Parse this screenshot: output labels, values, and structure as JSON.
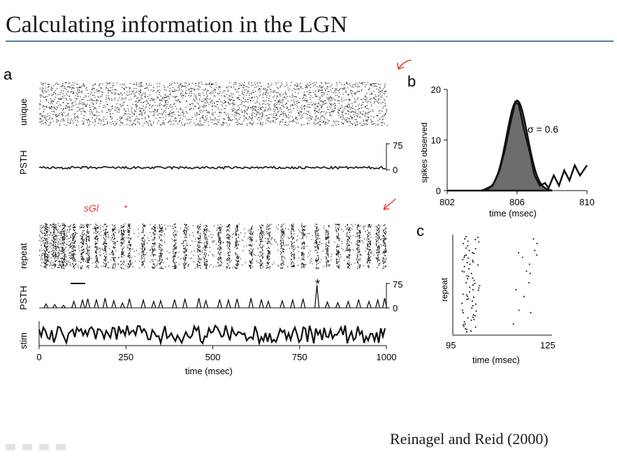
{
  "slide": {
    "title": "Calculating information in the LGN",
    "citation": "Reinagel and Reid (2000)"
  },
  "colors": {
    "title_rule": "#5a7fa6",
    "annotation": "#e8352b",
    "trace": "#111111"
  },
  "panel_a": {
    "label": "a",
    "unique_label": "unique",
    "psth_label_top": "PSTH",
    "psth_top_ticks": [
      "75",
      "0"
    ],
    "repeat_label": "repeat",
    "psth_label_bottom": "PSTH",
    "psth_bottom_ticks": [
      "75",
      "0"
    ],
    "stim_label": "stim",
    "x_ticks": [
      "0",
      "250",
      "500",
      "750",
      "1000"
    ],
    "xlabel": "time (msec)",
    "asterisk": "*"
  },
  "panel_b": {
    "label": "b",
    "ylabel": "spikes observed",
    "y_ticks": [
      "20",
      "10",
      "0"
    ],
    "x_ticks": [
      "802",
      "806",
      "810"
    ],
    "xlabel": "time (msec)",
    "annotation": "σ = 0.6"
  },
  "panel_c": {
    "label": "c",
    "ylabel": "repeat",
    "x_ticks": [
      "95",
      "125"
    ],
    "xlabel": "time (msec)"
  },
  "handwriting": {
    "note": "sGl"
  },
  "chart_data": [
    {
      "type": "line",
      "panel": "a-top",
      "ylabel": "PSTH",
      "xlabel": "time (msec)",
      "xlim": [
        0,
        1000
      ],
      "ylim": [
        0,
        75
      ],
      "description_values": {
        "mean_rate": 3
      }
    },
    {
      "type": "line",
      "panel": "a-bottom",
      "ylabel": "PSTH",
      "xlabel": "time (msec)",
      "xlim": [
        0,
        1000
      ],
      "ylim": [
        0,
        75
      ],
      "x": [
        20,
        45,
        70,
        100,
        125,
        140,
        165,
        190,
        215,
        240,
        260,
        300,
        330,
        350,
        390,
        420,
        460,
        480,
        520,
        545,
        570,
        610,
        640,
        660,
        700,
        730,
        760,
        800,
        830,
        860,
        890,
        920,
        950,
        975,
        995
      ],
      "values": [
        12,
        10,
        8,
        20,
        25,
        28,
        26,
        30,
        22,
        15,
        28,
        24,
        20,
        22,
        26,
        28,
        30,
        22,
        26,
        24,
        28,
        30,
        26,
        20,
        22,
        24,
        28,
        70,
        18,
        16,
        20,
        26,
        20,
        24,
        30
      ]
    },
    {
      "type": "line",
      "panel": "b",
      "ylabel": "spikes observed",
      "xlabel": "time (msec)",
      "xlim": [
        802,
        810
      ],
      "ylim": [
        0,
        20
      ],
      "x": [
        802,
        804,
        804.6,
        805,
        805.3,
        805.6,
        805.9,
        806.1,
        806.4,
        806.7,
        807,
        807.3,
        807.6,
        807.8,
        808.1,
        808.4,
        808.7,
        809,
        809.3,
        809.6,
        810
      ],
      "values": [
        0,
        0,
        1,
        4,
        8,
        13,
        17.5,
        17,
        12,
        8,
        3,
        1,
        1.5,
        0.5,
        3,
        1,
        4,
        2,
        5,
        3,
        5
      ],
      "annotation": "σ = 0.6"
    },
    {
      "type": "scatter",
      "panel": "c",
      "ylabel": "repeat",
      "xlabel": "time (msec)",
      "xlim": [
        95,
        125
      ]
    }
  ]
}
